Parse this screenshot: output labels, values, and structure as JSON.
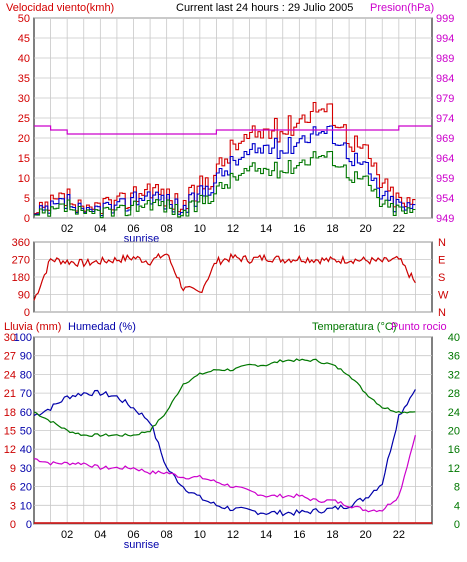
{
  "header": {
    "left_label": "Velocidad viento(kmh)",
    "center_label": "Current last 24 hours : 29 Julio 2005",
    "right_label": "Presion(hPa)"
  },
  "panel2_label": "",
  "panel3": {
    "label_lluvia": "Lluvia (mm)",
    "label_humedad": "Humedad (%)",
    "label_temp": "Temperatura (°C)",
    "label_rocio": "Punto rocio"
  },
  "x_ticks": [
    "02",
    "04",
    "06",
    "08",
    "10",
    "12",
    "14",
    "16",
    "18",
    "20",
    "22"
  ],
  "sunrise_label": "sunrise",
  "colors": {
    "speed": "#d40000",
    "gust": "#0000cc",
    "avg": "#007700",
    "pressure": "#cc00cc",
    "direction": "#cc0000",
    "humidity": "#0000aa",
    "temperature": "#007700",
    "dewpoint": "#cc00cc",
    "rain": "#cc0000",
    "grid": "#c8c8c8"
  },
  "chart_data": [
    {
      "type": "line",
      "title": "Current last 24 hours : 29 Julio 2005",
      "xlabel": "",
      "ylabel": "Velocidad viento(kmh)",
      "ylim": [
        0,
        50
      ],
      "y_ticks": [
        0,
        5,
        10,
        15,
        20,
        25,
        30,
        35,
        40,
        45,
        50
      ],
      "y2label": "Presion(hPa)",
      "y2lim": [
        949,
        999
      ],
      "y2_ticks": [
        949,
        954,
        959,
        964,
        969,
        974,
        979,
        984,
        989,
        994,
        999
      ],
      "x": [
        0,
        1,
        2,
        3,
        4,
        5,
        6,
        7,
        8,
        9,
        10,
        11,
        12,
        13,
        14,
        15,
        16,
        17,
        18,
        19,
        20,
        21,
        22,
        23
      ],
      "series": [
        {
          "values": [
            0,
            3,
            5,
            0,
            4,
            3,
            6,
            8,
            5,
            3,
            8,
            12,
            18,
            20,
            22,
            22,
            25,
            28,
            26,
            20,
            16,
            8,
            4,
            3
          ]
        },
        {
          "values": [
            0,
            2,
            4,
            0,
            3,
            2,
            5,
            6,
            4,
            2,
            6,
            10,
            14,
            16,
            18,
            17,
            20,
            22,
            21,
            16,
            12,
            5,
            3,
            2
          ]
        },
        {
          "values": [
            0,
            1,
            3,
            0,
            2,
            1,
            3,
            4,
            3,
            1,
            4,
            7,
            10,
            12,
            12,
            12,
            14,
            16,
            15,
            11,
            9,
            3,
            2,
            1
          ]
        },
        {
          "values": [
            972,
            971,
            970,
            970,
            970,
            970,
            970,
            970,
            970,
            970,
            970,
            971,
            971,
            971,
            971,
            971,
            971,
            971,
            971,
            971,
            971,
            971,
            972,
            972
          ]
        }
      ],
      "grid": true
    },
    {
      "type": "line",
      "ylim": [
        0,
        360
      ],
      "y_ticks": [
        0,
        90,
        180,
        270,
        360
      ],
      "y2_ticks": [
        "N",
        "W",
        "S",
        "E",
        "N"
      ],
      "x": [
        0,
        1,
        2,
        3,
        4,
        5,
        6,
        7,
        8,
        9,
        10,
        11,
        12,
        13,
        14,
        15,
        16,
        17,
        18,
        19,
        20,
        21,
        22,
        23
      ],
      "series": [
        {
          "values": [
            60,
            270,
            260,
            250,
            260,
            270,
            280,
            260,
            300,
            120,
            100,
            260,
            280,
            270,
            280,
            270,
            275,
            270,
            265,
            270,
            265,
            260,
            270,
            150
          ]
        }
      ],
      "grid": true
    },
    {
      "type": "line",
      "ylabel": "Lluvia (mm)",
      "ylim": [
        0,
        100
      ],
      "y_ticks": [
        0,
        10,
        20,
        30,
        40,
        50,
        60,
        70,
        80,
        90,
        100
      ],
      "y_ticks_humidity": [
        0,
        3,
        6,
        9,
        12,
        15,
        18,
        21,
        24,
        27,
        30
      ],
      "y2label": "Temperatura (°C)",
      "y2lim": [
        0,
        40
      ],
      "y2_ticks": [
        0,
        4,
        8,
        12,
        16,
        20,
        24,
        28,
        32,
        36,
        40
      ],
      "x": [
        0,
        1,
        2,
        3,
        4,
        5,
        6,
        7,
        8,
        9,
        10,
        11,
        12,
        13,
        14,
        15,
        16,
        17,
        18,
        19,
        20,
        21,
        22,
        23
      ],
      "series": [
        {
          "values": [
            58,
            62,
            68,
            70,
            70,
            68,
            62,
            55,
            30,
            20,
            14,
            10,
            8,
            7,
            6,
            6,
            6,
            7,
            8,
            10,
            14,
            22,
            58,
            72
          ]
        },
        {
          "values": [
            24,
            22,
            20,
            19,
            19,
            19,
            19,
            20,
            24,
            30,
            32,
            33,
            33,
            34,
            34,
            35,
            35,
            35,
            34,
            32,
            28,
            25,
            24,
            24
          ]
        },
        {
          "values": [
            14,
            13,
            13,
            13,
            12,
            12,
            12,
            11,
            11,
            10,
            10,
            9,
            8,
            7,
            6,
            6,
            6,
            5,
            5,
            4,
            3,
            3,
            6,
            19
          ]
        },
        {
          "values": [
            0,
            0,
            0,
            0,
            0,
            0,
            0,
            0,
            0,
            0,
            0,
            0,
            0,
            0,
            0,
            0,
            0,
            0,
            0,
            0,
            0,
            0,
            0,
            0
          ]
        }
      ],
      "grid": true
    }
  ]
}
